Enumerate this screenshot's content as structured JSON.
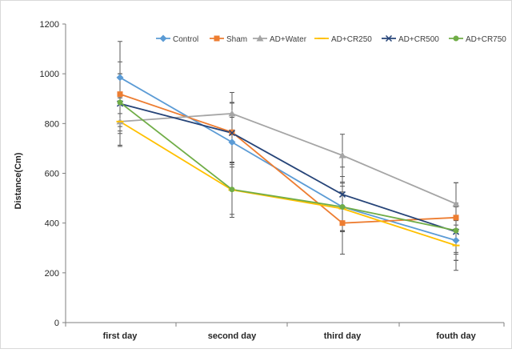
{
  "chart_data": {
    "type": "line",
    "title": "",
    "xlabel": "",
    "ylabel": "Distance(Cm)",
    "categories": [
      "first day",
      "second day",
      "third day",
      "fouth day"
    ],
    "ylim": [
      0,
      1200
    ],
    "yticks": [
      0,
      200,
      400,
      600,
      800,
      1000,
      1200
    ],
    "grid": false,
    "legend_position": "top-right",
    "series": [
      {
        "name": "Control",
        "color": "#5b9bd5",
        "marker": "diamond",
        "values": [
          985,
          725,
          465,
          330
        ],
        "errors": [
          145,
          100,
          95,
          80
        ]
      },
      {
        "name": "Sham",
        "color": "#ed7d31",
        "marker": "square",
        "values": [
          918,
          765,
          400,
          422
        ],
        "errors": [
          130,
          120,
          125,
          140
        ]
      },
      {
        "name": "AD+Water",
        "color": "#a5a5a5",
        "marker": "triangle",
        "values": [
          808,
          840,
          672,
          477
        ],
        "errors": [
          95,
          85,
          85,
          85
        ]
      },
      {
        "name": "AD+CR250",
        "color": "#ffc000",
        "marker": "dash",
        "values": [
          808,
          533,
          458,
          310
        ],
        "errors": [
          100,
          110,
          90,
          100
        ]
      },
      {
        "name": "AD+CR500",
        "color": "#264478",
        "marker": "x",
        "values": [
          880,
          762,
          515,
          365
        ],
        "errors": [
          120,
          120,
          110,
          115
        ]
      },
      {
        "name": "AD+CR750",
        "color": "#70ad47",
        "marker": "circle",
        "values": [
          885,
          535,
          465,
          370
        ],
        "errors": [
          115,
          100,
          100,
          95
        ]
      }
    ]
  }
}
